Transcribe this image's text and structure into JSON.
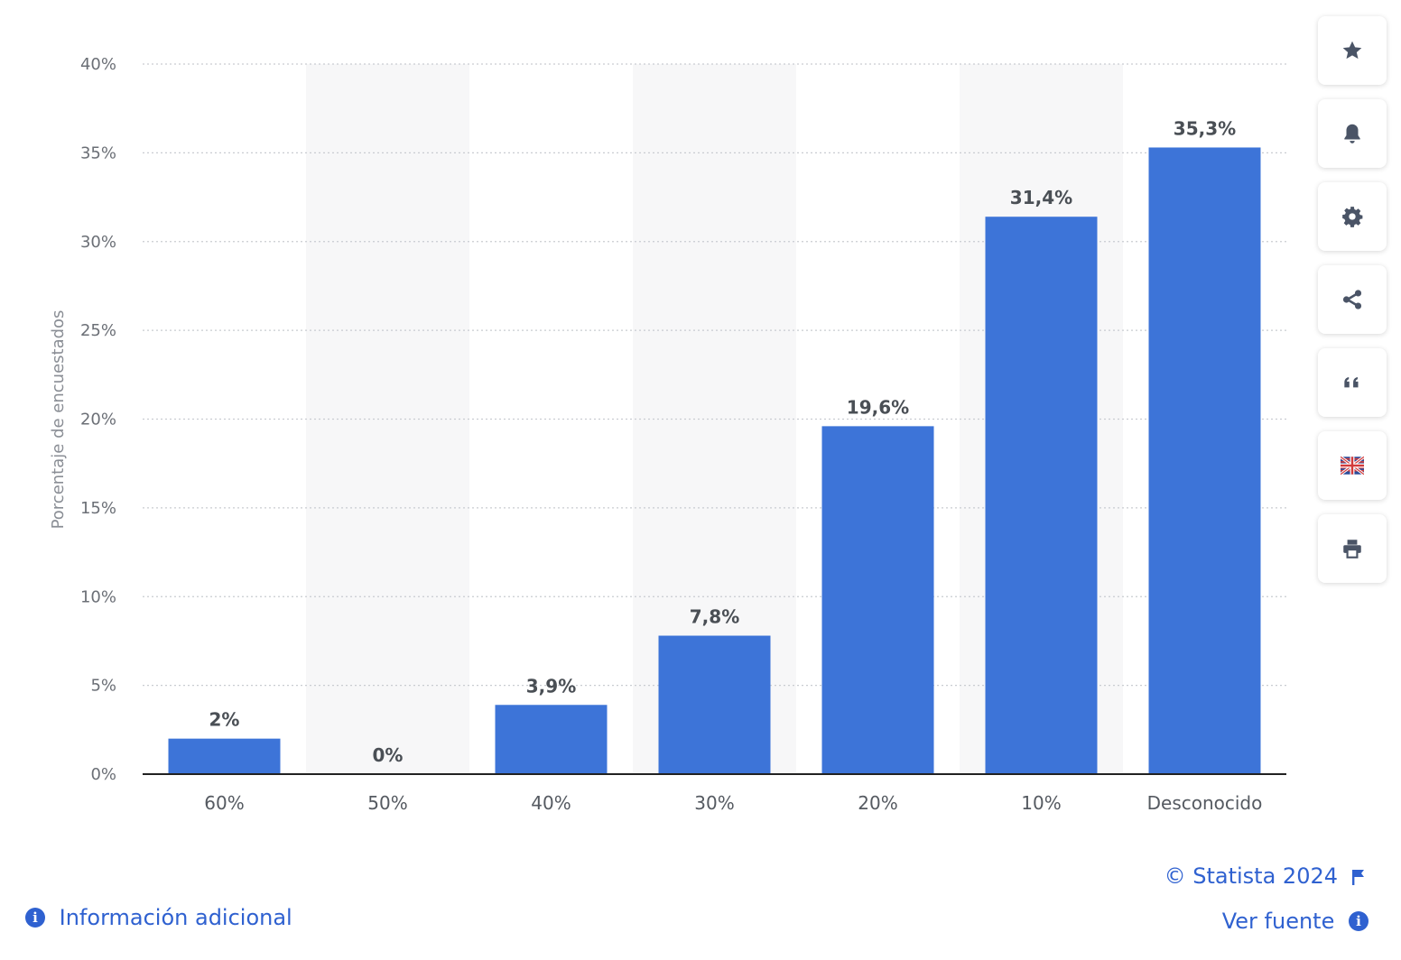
{
  "chart_data": {
    "type": "bar",
    "categories": [
      "60%",
      "50%",
      "40%",
      "30%",
      "20%",
      "10%",
      "Desconocido"
    ],
    "values": [
      2,
      0,
      3.9,
      7.8,
      19.6,
      31.4,
      35.3
    ],
    "value_labels": [
      "2%",
      "0%",
      "3,9%",
      "7,8%",
      "19,6%",
      "31,4%",
      "35,3%"
    ],
    "ylabel": "Porcentaje de encuestados",
    "xlabel": "",
    "ylim": [
      0,
      40
    ],
    "yticks": [
      "0%",
      "5%",
      "10%",
      "15%",
      "20%",
      "25%",
      "30%",
      "35%",
      "40%"
    ],
    "grid": true,
    "bar_color": "#3d74d8",
    "alt_band_color": "#f7f7f8"
  },
  "toolbar": {
    "items": [
      "star-icon",
      "bell-icon",
      "gear-icon",
      "share-icon",
      "quote-icon",
      "flag-uk-icon",
      "print-icon"
    ]
  },
  "footer": {
    "copyright": "© Statista 2024",
    "info_link": "Información adicional",
    "source_link": "Ver fuente",
    "link_color": "#2f61d0"
  }
}
